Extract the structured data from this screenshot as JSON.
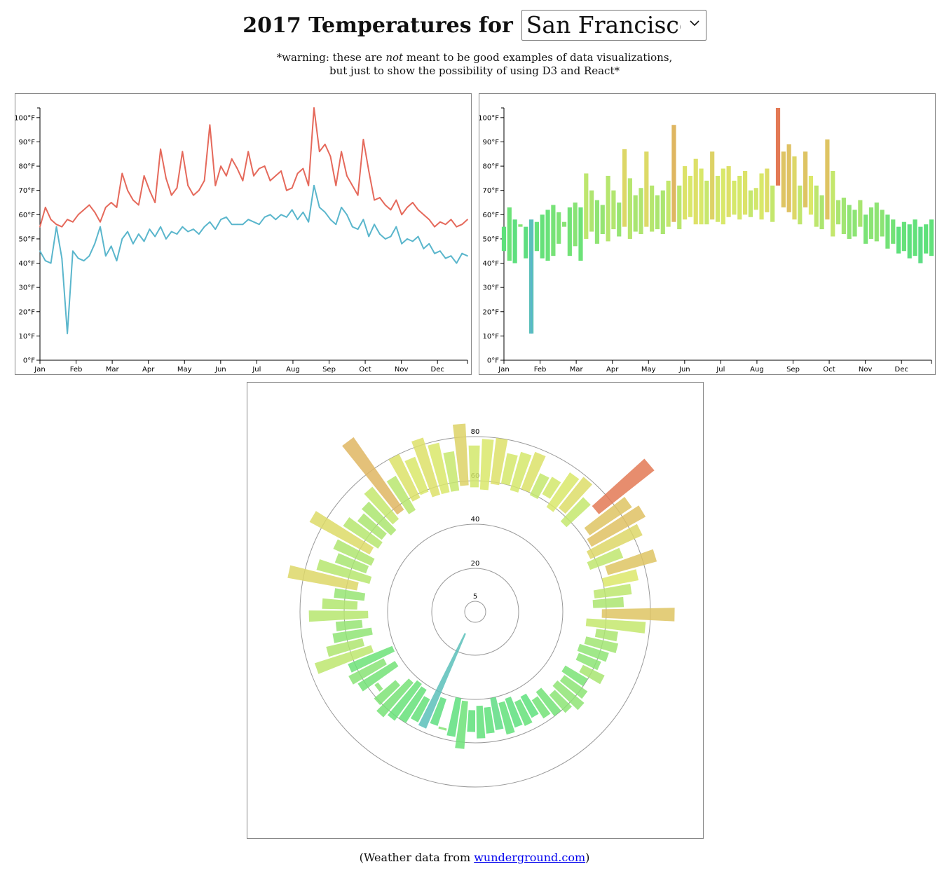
{
  "header": {
    "title": "2017 Temperatures for",
    "city_selected": "San Francisco",
    "warning_prefix": "*warning: these are ",
    "warning_em": "not",
    "warning_suffix": " meant to be good examples of data visualizations,",
    "warning_line2": "but just to show the possibility of using D3 and React*"
  },
  "footer": {
    "prefix": "(Weather data from ",
    "link_text": "wunderground.com",
    "suffix": ")"
  },
  "colors": {
    "high_line": "#e5695b",
    "low_line": "#5ab6cc",
    "scale_cold": "#5ab6cc",
    "scale_mild": "#5ee17a",
    "scale_warm": "#dce86a",
    "scale_hot": "#e6524e"
  },
  "chart_data": [
    {
      "type": "line",
      "title": "",
      "x_tick_labels": [
        "Jan",
        "Feb",
        "Mar",
        "Apr",
        "May",
        "Jun",
        "Jul",
        "Aug",
        "Sep",
        "Oct",
        "Nov",
        "Dec"
      ],
      "y_tick_labels": [
        "0°F",
        "10°F",
        "20°F",
        "30°F",
        "40°F",
        "50°F",
        "60°F",
        "70°F",
        "80°F",
        "90°F",
        "100°F"
      ],
      "ylim": [
        0,
        104
      ],
      "x_unit": "week of 2017 (week 1 = first week of Jan)",
      "series": [
        {
          "key": "high",
          "color": "#e5695b",
          "values": [
            55,
            63,
            58,
            56,
            55,
            58,
            57,
            60,
            62,
            64,
            61,
            57,
            63,
            65,
            63,
            77,
            70,
            66,
            64,
            76,
            70,
            65,
            87,
            75,
            68,
            71,
            86,
            72,
            68,
            70,
            74,
            97,
            72,
            80,
            76,
            83,
            79,
            74,
            86,
            76,
            79,
            80,
            74,
            76,
            78,
            70,
            71,
            77,
            79,
            72,
            104,
            86,
            89,
            84,
            72,
            86,
            76,
            72,
            68,
            91,
            78,
            66,
            67,
            64,
            62,
            66,
            60,
            63,
            65,
            62,
            60,
            58,
            55,
            57,
            56,
            58,
            55,
            56,
            58
          ]
        },
        {
          "key": "low",
          "color": "#5ab6cc",
          "values": [
            45,
            41,
            40,
            55,
            42,
            11,
            45,
            42,
            41,
            43,
            48,
            55,
            43,
            47,
            41,
            50,
            53,
            48,
            52,
            49,
            54,
            51,
            55,
            50,
            53,
            52,
            55,
            53,
            54,
            52,
            55,
            57,
            54,
            58,
            59,
            56,
            56,
            56,
            58,
            57,
            56,
            59,
            60,
            58,
            60,
            59,
            62,
            58,
            61,
            57,
            72,
            63,
            61,
            58,
            56,
            63,
            60,
            55,
            54,
            58,
            51,
            56,
            52,
            50,
            51,
            55,
            48,
            50,
            49,
            51,
            46,
            48,
            44,
            45,
            42,
            43,
            40,
            44,
            43
          ]
        }
      ]
    },
    {
      "type": "bar",
      "title": "",
      "x_tick_labels": [
        "Jan",
        "Feb",
        "Mar",
        "Apr",
        "May",
        "Jun",
        "Jul",
        "Aug",
        "Sep",
        "Oct",
        "Nov",
        "Dec"
      ],
      "y_tick_labels": [
        "0°F",
        "10°F",
        "20°F",
        "30°F",
        "40°F",
        "50°F",
        "60°F",
        "70°F",
        "80°F",
        "90°F",
        "100°F"
      ],
      "ylim": [
        0,
        104
      ],
      "note": "floating bars from weekly low to weekly high, colored by average temperature; same values as the line chart"
    },
    {
      "type": "radial-bar",
      "title": "",
      "ring_labels": [
        "5",
        "20",
        "40",
        "60",
        "80"
      ],
      "note": "same weekly low/high values drawn radially around the year"
    }
  ]
}
